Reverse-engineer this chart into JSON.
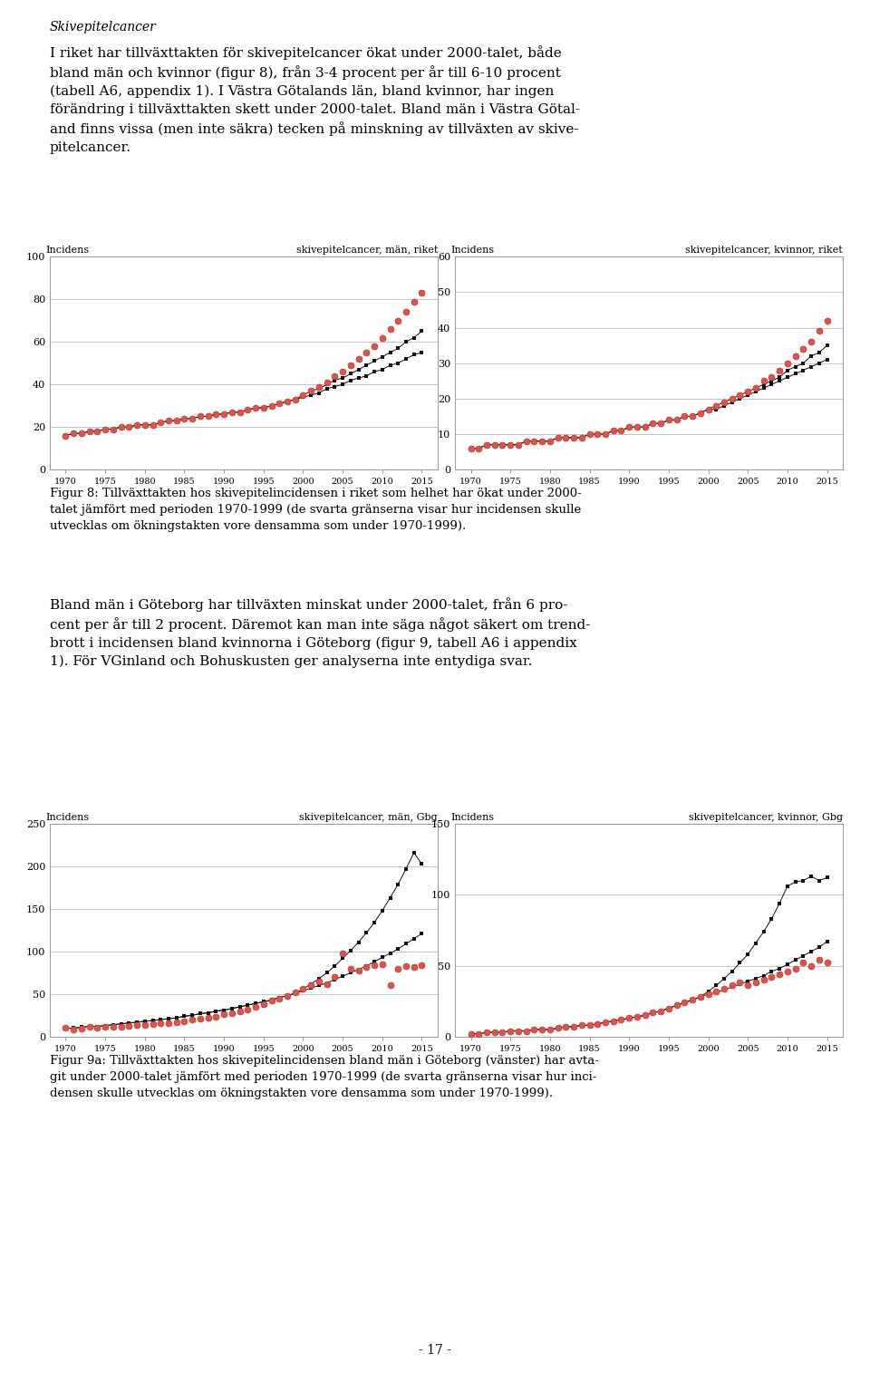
{
  "title_italic": "Skivepitelcancer",
  "paragraph1": "I riket har tillväxttakten för skivepitelcancer ökat under 2000-talet, både\nbland män och kvinnor (figur 8), från 3-4 procent per år till 6-10 procent\n(tabell A6, appendix 1). I Västra Götalands län, bland kvinnor, har ingen\nförändring i tillväxttakten skett under 2000-talet. Bland män i Västra Götal-\nand finns vissa (men inte säkra) tecken på minskning av tillväxten av skive-\npitelcancer.",
  "fig8_caption": "Figur 8: Tillväxttakten hos skivepitelincidensen i riket som helhet har ökat under 2000-\ntalet jämfört med perioden 1970-1999 (de svarta gränserna visar hur incidensen skulle\nutvecklas om ökningstakten vore densamma som under 1970-1999).",
  "paragraph2": "Bland män i Göteborg har tillväxten minskat under 2000-talet, från 6 pro-\ncent per år till 2 procent. Däremot kan man inte säga något säkert om trend-\nbrott i incidensen bland kvinnorna i Göteborg (figur 9, tabell A6 i appendix\n1). För VGinland och Bohuskusten ger analyserna inte entydiga svar.",
  "fig9_caption": "Figur 9a: Tillväxttakten hos skivepitelincidensen bland män i Göteborg (vänster) har avta-\ngit under 2000-talet jämfört med perioden 1970-1999 (de svarta gränserna visar hur inci-\ndensen skulle utvecklas om ökningstakten vore densamma som under 1970-1999).",
  "page_number": "- 17 -",
  "charts": [
    {
      "title": "skivepitelcancer, män, riket",
      "ylabel": "Incidens",
      "ylim": [
        0,
        100
      ],
      "yticks": [
        0,
        20,
        40,
        60,
        80,
        100
      ],
      "years": [
        1970,
        1971,
        1972,
        1973,
        1974,
        1975,
        1976,
        1977,
        1978,
        1979,
        1980,
        1981,
        1982,
        1983,
        1984,
        1985,
        1986,
        1987,
        1988,
        1989,
        1990,
        1991,
        1992,
        1993,
        1994,
        1995,
        1996,
        1997,
        1998,
        1999,
        2000,
        2001,
        2002,
        2003,
        2004,
        2005,
        2006,
        2007,
        2008,
        2009,
        2010,
        2011,
        2012,
        2013,
        2014,
        2015
      ],
      "observed": [
        16,
        17,
        17,
        18,
        18,
        19,
        19,
        20,
        20,
        21,
        21,
        21,
        22,
        23,
        23,
        24,
        24,
        25,
        25,
        26,
        26,
        27,
        27,
        28,
        29,
        29,
        30,
        31,
        32,
        33,
        35,
        37,
        39,
        41,
        44,
        46,
        49,
        52,
        55,
        58,
        62,
        66,
        70,
        74,
        79,
        83
      ],
      "trend_lower": [
        16,
        17,
        17,
        18,
        18,
        19,
        19,
        20,
        20,
        21,
        21,
        21,
        22,
        23,
        23,
        24,
        24,
        25,
        25,
        26,
        26,
        27,
        27,
        28,
        29,
        29,
        30,
        31,
        32,
        33,
        34,
        35,
        36,
        38,
        39,
        40,
        42,
        43,
        44,
        46,
        47,
        49,
        50,
        52,
        54,
        55
      ],
      "trend_upper": [
        16,
        17,
        17,
        18,
        18,
        19,
        19,
        20,
        20,
        21,
        21,
        21,
        22,
        23,
        23,
        24,
        24,
        25,
        25,
        26,
        26,
        27,
        27,
        28,
        29,
        29,
        30,
        31,
        32,
        33,
        35,
        37,
        38,
        40,
        42,
        43,
        45,
        47,
        49,
        51,
        53,
        55,
        57,
        60,
        62,
        65
      ]
    },
    {
      "title": "skivepitelcancer, kvinnor, riket",
      "ylabel": "Incidens",
      "ylim": [
        0,
        60
      ],
      "yticks": [
        0,
        10,
        20,
        30,
        40,
        50,
        60
      ],
      "years": [
        1970,
        1971,
        1972,
        1973,
        1974,
        1975,
        1976,
        1977,
        1978,
        1979,
        1980,
        1981,
        1982,
        1983,
        1984,
        1985,
        1986,
        1987,
        1988,
        1989,
        1990,
        1991,
        1992,
        1993,
        1994,
        1995,
        1996,
        1997,
        1998,
        1999,
        2000,
        2001,
        2002,
        2003,
        2004,
        2005,
        2006,
        2007,
        2008,
        2009,
        2010,
        2011,
        2012,
        2013,
        2014,
        2015
      ],
      "observed": [
        6,
        6,
        7,
        7,
        7,
        7,
        7,
        8,
        8,
        8,
        8,
        9,
        9,
        9,
        9,
        10,
        10,
        10,
        11,
        11,
        12,
        12,
        12,
        13,
        13,
        14,
        14,
        15,
        15,
        16,
        17,
        18,
        19,
        20,
        21,
        22,
        23,
        25,
        26,
        28,
        30,
        32,
        34,
        36,
        39,
        42
      ],
      "trend_lower": [
        6,
        6,
        7,
        7,
        7,
        7,
        7,
        8,
        8,
        8,
        8,
        9,
        9,
        9,
        9,
        10,
        10,
        10,
        11,
        11,
        12,
        12,
        12,
        13,
        13,
        14,
        14,
        15,
        15,
        16,
        17,
        17,
        18,
        19,
        20,
        21,
        22,
        23,
        24,
        25,
        26,
        27,
        28,
        29,
        30,
        31
      ],
      "trend_upper": [
        6,
        6,
        7,
        7,
        7,
        7,
        7,
        8,
        8,
        8,
        8,
        9,
        9,
        9,
        9,
        10,
        10,
        10,
        11,
        11,
        12,
        12,
        12,
        13,
        13,
        14,
        14,
        15,
        15,
        16,
        17,
        18,
        19,
        20,
        21,
        22,
        23,
        24,
        25,
        26,
        28,
        29,
        30,
        32,
        33,
        35
      ]
    },
    {
      "title": "skivepitelcancer, män, Gbg",
      "ylabel": "Incidens",
      "ylim": [
        0,
        250
      ],
      "yticks": [
        0,
        50,
        100,
        150,
        200,
        250
      ],
      "years": [
        1970,
        1971,
        1972,
        1973,
        1974,
        1975,
        1976,
        1977,
        1978,
        1979,
        1980,
        1981,
        1982,
        1983,
        1984,
        1985,
        1986,
        1987,
        1988,
        1989,
        1990,
        1991,
        1992,
        1993,
        1994,
        1995,
        1996,
        1997,
        1998,
        1999,
        2000,
        2001,
        2002,
        2003,
        2004,
        2005,
        2006,
        2007,
        2008,
        2009,
        2010,
        2011,
        2012,
        2013,
        2014,
        2015
      ],
      "observed": [
        10,
        8,
        9,
        12,
        10,
        11,
        11,
        12,
        13,
        14,
        14,
        15,
        16,
        16,
        17,
        18,
        20,
        21,
        22,
        23,
        26,
        28,
        30,
        32,
        35,
        38,
        42,
        45,
        48,
        52,
        56,
        60,
        65,
        62,
        70,
        98,
        80,
        78,
        82,
        84,
        85,
        60,
        80,
        83,
        82,
        84
      ],
      "trend_lower": [
        10,
        10,
        11,
        12,
        12,
        13,
        14,
        15,
        16,
        17,
        18,
        19,
        20,
        21,
        22,
        24,
        25,
        27,
        28,
        30,
        31,
        33,
        35,
        37,
        39,
        41,
        43,
        46,
        48,
        51,
        54,
        57,
        60,
        63,
        67,
        71,
        75,
        79,
        83,
        88,
        93,
        98,
        103,
        109,
        115,
        121
      ],
      "trend_upper": [
        10,
        10,
        11,
        12,
        12,
        13,
        14,
        15,
        16,
        17,
        18,
        19,
        20,
        21,
        22,
        24,
        25,
        27,
        28,
        30,
        31,
        33,
        35,
        37,
        39,
        41,
        43,
        46,
        48,
        51,
        56,
        62,
        68,
        75,
        83,
        92,
        101,
        111,
        122,
        134,
        148,
        163,
        179,
        197,
        216,
        203
      ]
    },
    {
      "title": "skivepitelcancer, kvinnor, Gbg",
      "ylabel": "Incidens",
      "ylim": [
        0,
        150
      ],
      "yticks": [
        0,
        50,
        100,
        150
      ],
      "years": [
        1970,
        1971,
        1972,
        1973,
        1974,
        1975,
        1976,
        1977,
        1978,
        1979,
        1980,
        1981,
        1982,
        1983,
        1984,
        1985,
        1986,
        1987,
        1988,
        1989,
        1990,
        1991,
        1992,
        1993,
        1994,
        1995,
        1996,
        1997,
        1998,
        1999,
        2000,
        2001,
        2002,
        2003,
        2004,
        2005,
        2006,
        2007,
        2008,
        2009,
        2010,
        2011,
        2012,
        2013,
        2014,
        2015
      ],
      "observed": [
        2,
        2,
        3,
        3,
        3,
        4,
        4,
        4,
        5,
        5,
        5,
        6,
        7,
        7,
        8,
        8,
        9,
        10,
        11,
        12,
        13,
        14,
        15,
        17,
        18,
        20,
        22,
        24,
        26,
        28,
        30,
        32,
        34,
        36,
        38,
        36,
        38,
        40,
        42,
        44,
        46,
        48,
        52,
        50,
        54,
        52
      ],
      "trend_lower": [
        2,
        2,
        3,
        3,
        3,
        4,
        4,
        4,
        5,
        5,
        5,
        6,
        7,
        7,
        8,
        8,
        9,
        10,
        11,
        12,
        13,
        14,
        15,
        17,
        18,
        20,
        22,
        24,
        26,
        28,
        30,
        31,
        33,
        35,
        37,
        39,
        41,
        43,
        46,
        48,
        51,
        54,
        57,
        60,
        63,
        67
      ],
      "trend_upper": [
        2,
        2,
        3,
        3,
        3,
        4,
        4,
        4,
        5,
        5,
        5,
        6,
        7,
        7,
        8,
        8,
        9,
        10,
        11,
        12,
        13,
        14,
        15,
        17,
        18,
        20,
        22,
        24,
        26,
        28,
        32,
        36,
        41,
        46,
        52,
        58,
        66,
        74,
        83,
        94,
        106,
        109,
        110,
        113,
        110,
        112
      ]
    }
  ],
  "dot_color": "#d9534f",
  "dot_edgecolor": "#c0392b",
  "trend_color": "#111111",
  "bg_color": "#ffffff",
  "text_color": "#000000",
  "font_family": "DejaVu Serif"
}
